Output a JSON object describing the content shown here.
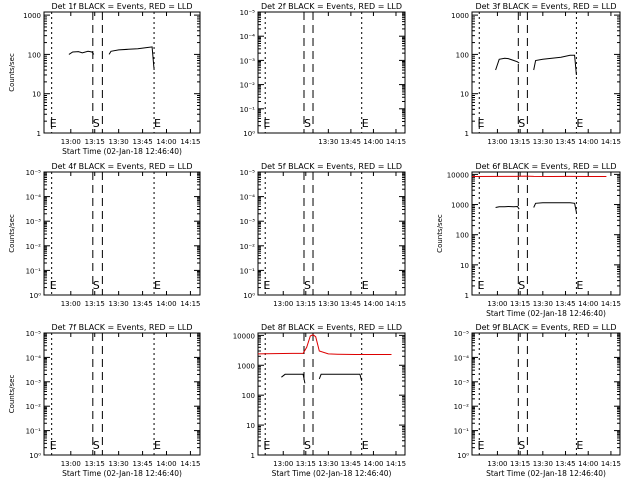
{
  "chart_data": [
    {
      "type": "line",
      "title": "Det 1f BLACK = Events, RED = LLD",
      "scale": "log",
      "ylabel": "Counts/sec",
      "yticks": [
        "1",
        "10",
        "100",
        "1000"
      ],
      "ylim": [
        1,
        1200
      ],
      "xlabel": "Start Time (02-Jan-18 12:46:40)",
      "xticks": [
        "13:00",
        "13:15",
        "13:30",
        "13:45",
        "14:00",
        "14:15"
      ],
      "markers": [
        "E",
        "S",
        "E"
      ],
      "series": [
        {
          "color": "#000000",
          "segments": [
            {
              "x": [
                12.98,
                13.02,
                13.08,
                13.12,
                13.18,
                13.22,
                13.24
              ],
              "y": [
                100,
                115,
                118,
                110,
                120,
                115,
                100
              ]
            },
            {
              "x": [
                13.4,
                13.42,
                13.5,
                13.6,
                13.7,
                13.8,
                13.85,
                13.87
              ],
              "y": [
                100,
                120,
                130,
                135,
                140,
                150,
                155,
                40
              ]
            }
          ]
        }
      ]
    },
    {
      "type": "line",
      "title": "Det 2f BLACK = Events, RED = LLD",
      "scale": "log",
      "ylabel": "",
      "yticks": [
        "10⁰",
        "10⁻¹",
        "10⁻²",
        "10⁻³",
        "10⁻⁴",
        "10⁻⁵"
      ],
      "ylim": [
        1,
        100000
      ],
      "xlabel": "",
      "xticks": [
        "13:30",
        "13:45",
        "14:00",
        "14:15"
      ],
      "markers": [
        "E",
        "S",
        "E"
      ],
      "series": []
    },
    {
      "type": "line",
      "title": "Det 3f BLACK = Events, RED = LLD",
      "scale": "log",
      "ylabel": "",
      "yticks": [
        "1",
        "10",
        "100",
        "1000"
      ],
      "ylim": [
        1,
        1200
      ],
      "xlabel": "",
      "xticks": [
        "13:00",
        "13:15",
        "13:30",
        "13:45",
        "14:00",
        "14:15"
      ],
      "markers": [
        "E",
        "S",
        "E"
      ],
      "series": [
        {
          "color": "#000000",
          "segments": [
            {
              "x": [
                12.98,
                13.02,
                13.08,
                13.12,
                13.18,
                13.22,
                13.24
              ],
              "y": [
                40,
                75,
                80,
                78,
                70,
                65,
                60
              ]
            },
            {
              "x": [
                13.4,
                13.42,
                13.5,
                13.6,
                13.7,
                13.8,
                13.85,
                13.87
              ],
              "y": [
                40,
                70,
                75,
                80,
                85,
                95,
                95,
                30
              ]
            }
          ]
        }
      ]
    },
    {
      "type": "line",
      "title": "Det 4f BLACK = Events, RED = LLD",
      "scale": "log",
      "ylabel": "Counts/sec",
      "yticks": [
        "10⁰",
        "10⁻¹",
        "10⁻²",
        "10⁻³",
        "10⁻⁴",
        "10⁻⁵"
      ],
      "ylim": [
        1,
        100000
      ],
      "xlabel": "",
      "xticks": [
        "13:00",
        "13:15",
        "13:30",
        "13:45",
        "14:00",
        "14:15"
      ],
      "markers": [
        "E",
        "S",
        "E"
      ],
      "series": []
    },
    {
      "type": "line",
      "title": "Det 5f BLACK = Events, RED = LLD",
      "scale": "log",
      "ylabel": "",
      "yticks": [
        "10⁰",
        "10⁻¹",
        "10⁻²",
        "10⁻³",
        "10⁻⁴",
        "10⁻⁵"
      ],
      "ylim": [
        1,
        100000
      ],
      "xlabel": "",
      "xticks": [
        "13:00",
        "13:15",
        "13:30",
        "13:45",
        "14:00",
        "14:15"
      ],
      "markers": [
        "E",
        "S",
        "E"
      ],
      "series": []
    },
    {
      "type": "line",
      "title": "Det 6f BLACK = Events, RED = LLD",
      "scale": "log",
      "ylabel": "Counts/sec",
      "yticks": [
        "1",
        "10",
        "100",
        "1000",
        "10000"
      ],
      "ylim": [
        1,
        12000
      ],
      "xlabel": "Start Time (02-Jan-18 12:46:40)",
      "xticks": [
        "13:00",
        "13:15",
        "13:30",
        "13:45",
        "14:00",
        "14:15"
      ],
      "markers": [
        "E",
        "S",
        "E"
      ],
      "series": [
        {
          "color": "#000000",
          "segments": [
            {
              "x": [
                12.98,
                13.02,
                13.08,
                13.12,
                13.18,
                13.22,
                13.24
              ],
              "y": [
                800,
                850,
                850,
                860,
                850,
                860,
                700
              ]
            },
            {
              "x": [
                13.4,
                13.42,
                13.5,
                13.6,
                13.7,
                13.8,
                13.85,
                13.87
              ],
              "y": [
                800,
                1100,
                1150,
                1150,
                1140,
                1150,
                1100,
                550
              ]
            }
          ]
        },
        {
          "color": "#dd0000",
          "segments": [
            {
              "x": [
                12.72,
                13.2,
                13.3,
                13.4,
                13.6,
                13.8,
                14.0,
                14.2
              ],
              "y": [
                8500,
                8600,
                8800,
                8600,
                8500,
                8600,
                8500,
                8500
              ]
            }
          ]
        }
      ]
    },
    {
      "type": "line",
      "title": "Det 7f BLACK = Events, RED = LLD",
      "scale": "log",
      "ylabel": "Counts/sec",
      "yticks": [
        "10⁰",
        "10⁻¹",
        "10⁻²",
        "10⁻³",
        "10⁻⁴",
        "10⁻⁵"
      ],
      "ylim": [
        1,
        100000
      ],
      "xlabel": "Start Time (02-Jan-18 12:46:40)",
      "xticks": [
        "13:00",
        "13:15",
        "13:30",
        "13:45",
        "14:00",
        "14:15"
      ],
      "markers": [
        "E",
        "S",
        "E"
      ],
      "series": []
    },
    {
      "type": "line",
      "title": "Det 8f BLACK = Events, RED = LLD",
      "scale": "log",
      "ylabel": "",
      "yticks": [
        "1",
        "10",
        "100",
        "1000",
        "10000"
      ],
      "ylim": [
        1,
        12000
      ],
      "xlabel": "Start Time (02-Jan-18 12:46:40)",
      "xticks": [
        "13:00",
        "13:15",
        "13:30",
        "13:45",
        "14:00",
        "14:15"
      ],
      "markers": [
        "E",
        "S",
        "E"
      ],
      "series": [
        {
          "color": "#000000",
          "segments": [
            {
              "x": [
                12.98,
                13.02,
                13.08,
                13.12,
                13.18,
                13.22,
                13.24
              ],
              "y": [
                400,
                500,
                500,
                500,
                500,
                500,
                250
              ]
            },
            {
              "x": [
                13.4,
                13.42,
                13.5,
                13.6,
                13.7,
                13.8,
                13.85,
                13.87
              ],
              "y": [
                350,
                500,
                500,
                500,
                500,
                500,
                500,
                300
              ]
            }
          ]
        },
        {
          "color": "#dd0000",
          "segments": [
            {
              "x": [
                12.72,
                12.9,
                13.1,
                13.22,
                13.26,
                13.3,
                13.33,
                13.36,
                13.4,
                13.5,
                13.6,
                13.8,
                14.0,
                14.2
              ],
              "y": [
                2400,
                2450,
                2500,
                2500,
                4000,
                9500,
                10500,
                9000,
                3000,
                2400,
                2350,
                2300,
                2300,
                2300
              ]
            }
          ]
        }
      ]
    },
    {
      "type": "line",
      "title": "Det 9f BLACK = Events, RED = LLD",
      "scale": "log",
      "ylabel": "",
      "yticks": [
        "10⁰",
        "10⁻¹",
        "10⁻²",
        "10⁻³",
        "10⁻⁴",
        "10⁻⁵"
      ],
      "ylim": [
        1,
        100000
      ],
      "xlabel": "Start Time (02-Jan-18 12:46:40)",
      "xticks": [
        "13:00",
        "13:15",
        "13:30",
        "13:45",
        "14:00",
        "14:15"
      ],
      "markers": [
        "E",
        "S",
        "E"
      ],
      "series": []
    }
  ]
}
